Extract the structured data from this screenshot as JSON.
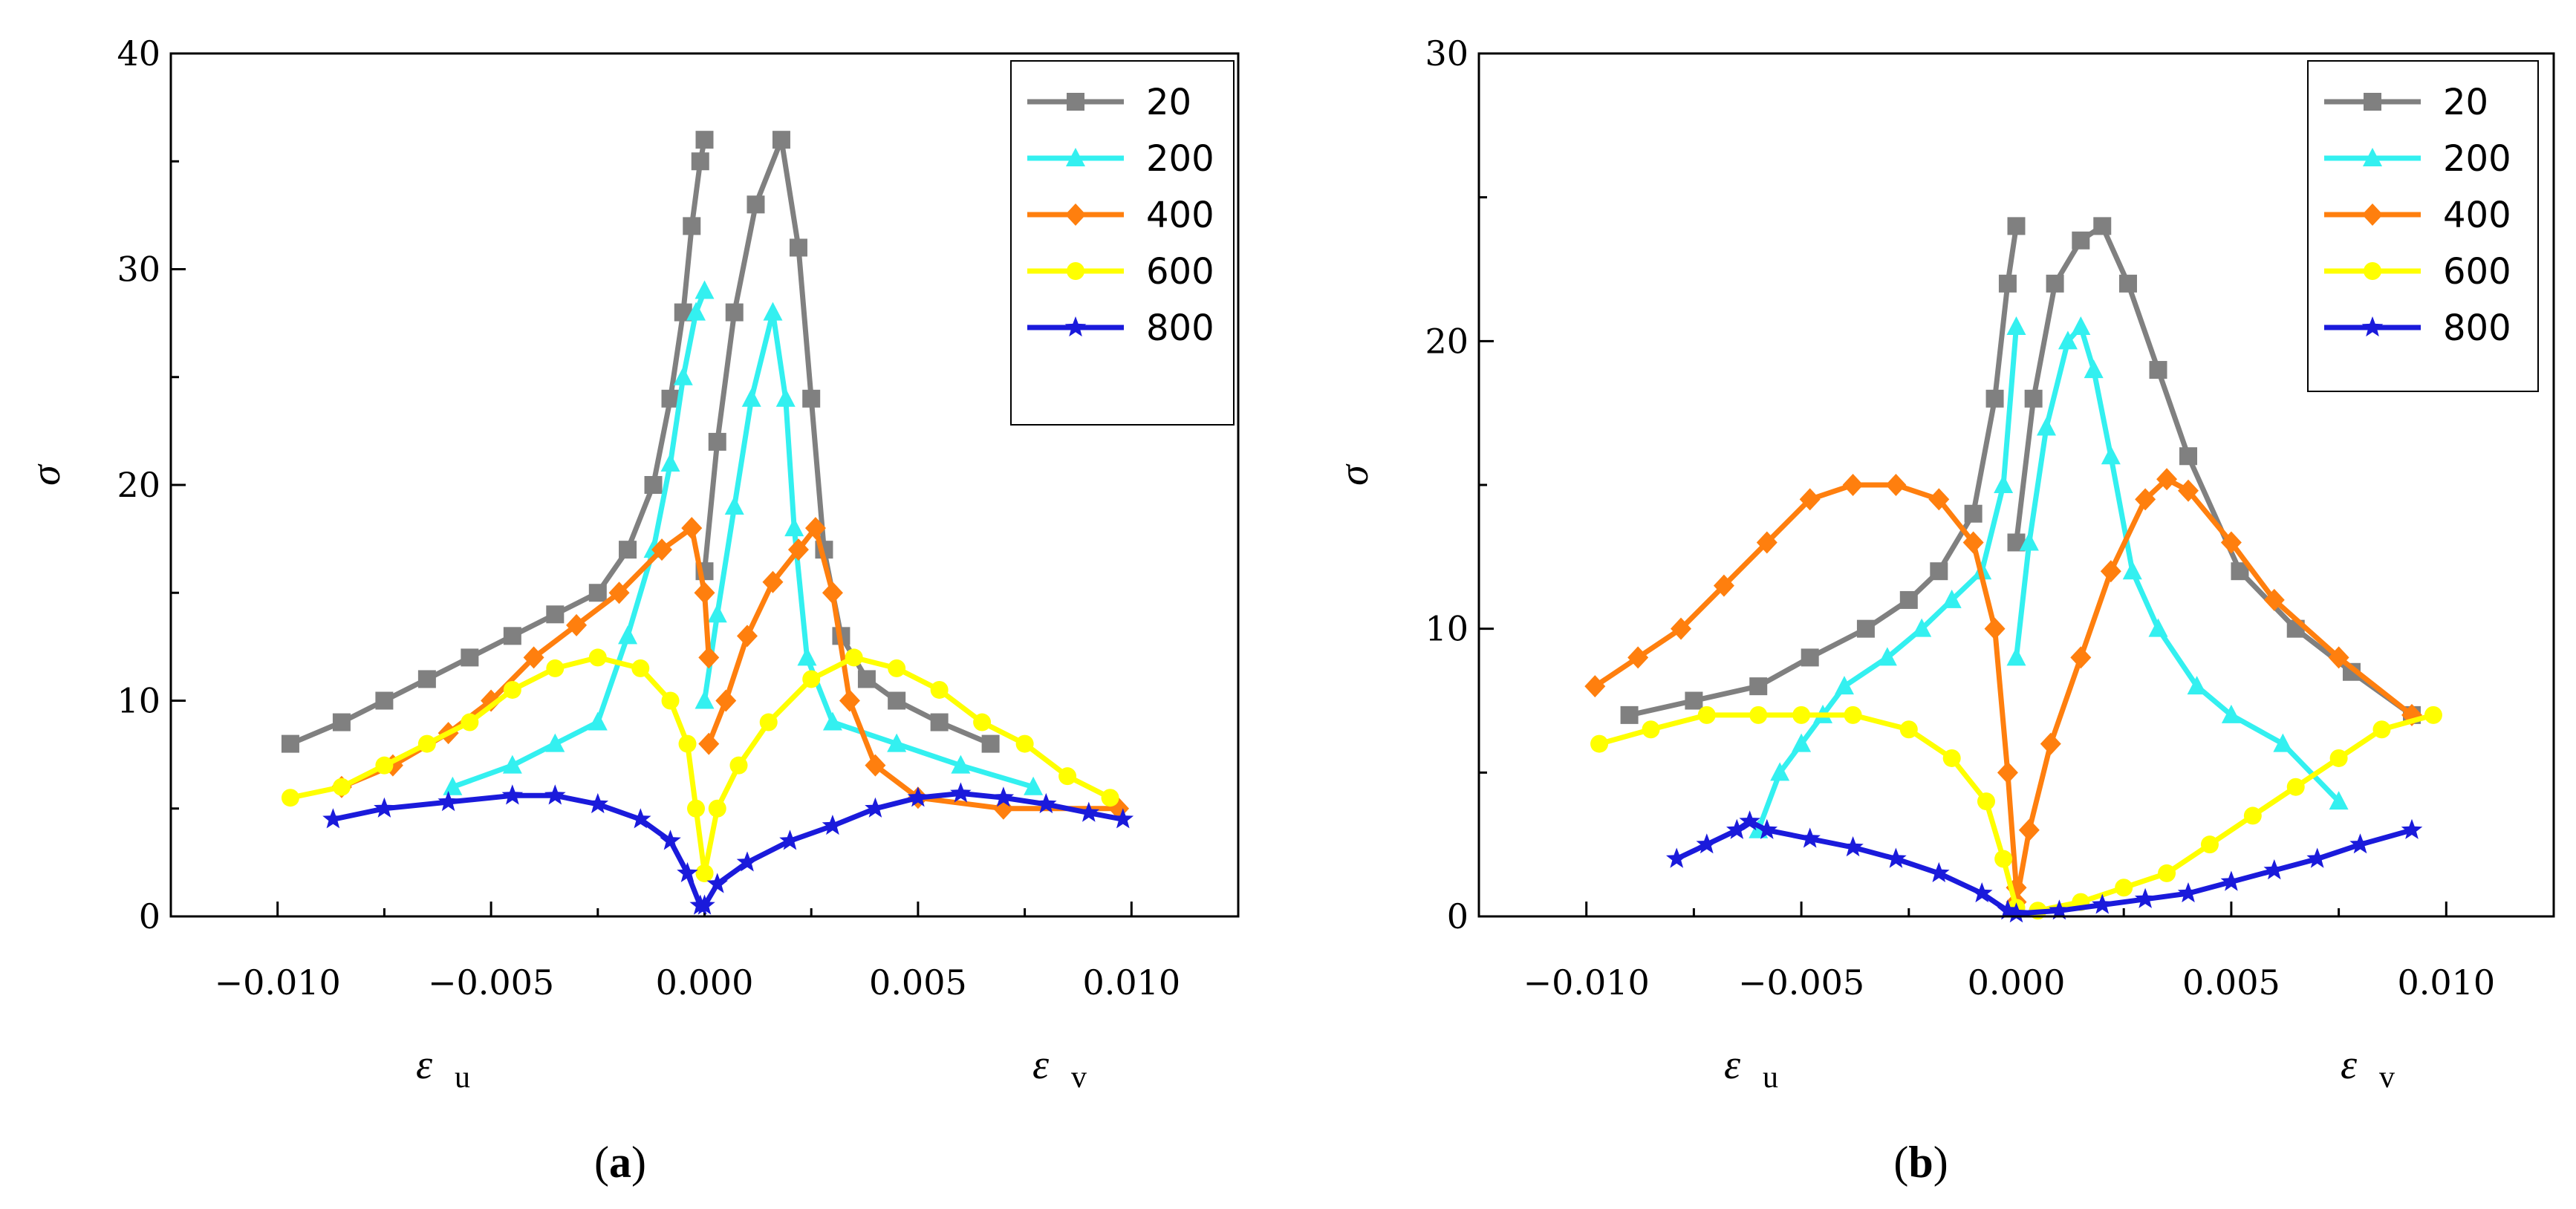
{
  "figure": {
    "caption_a": "a",
    "caption_b": "b",
    "paren_open": "(",
    "paren_close": ")"
  },
  "colors": {
    "20": "#808080",
    "200": "#33f0f0",
    "400": "#ff7f0e",
    "600": "#ffff00",
    "800": "#1a1adb"
  },
  "chart_data": [
    {
      "type": "line",
      "id": "a",
      "caption": "a",
      "ylabel": "σ",
      "xlabel_left": "ε",
      "xlabel_left_sub": "u",
      "xlabel_right": "ε",
      "xlabel_right_sub": "v",
      "xlim": [
        -0.0125,
        0.0125
      ],
      "ylim": [
        0,
        40
      ],
      "xticks": [
        -0.01,
        -0.005,
        0.0,
        0.005,
        0.01
      ],
      "xtick_labels": [
        "−0.010",
        "−0.005",
        "0.000",
        "0.005",
        "0.010"
      ],
      "yticks": [
        0,
        10,
        20,
        30,
        40
      ],
      "ytick_labels": [
        "0",
        "10",
        "20",
        "30",
        "40"
      ],
      "legend": [
        "20",
        "200",
        "400",
        "600",
        "800"
      ],
      "series": [
        {
          "name": "20",
          "marker": "square",
          "left": [
            [
              -0.0097,
              8
            ],
            [
              -0.0085,
              9
            ],
            [
              -0.0075,
              10
            ],
            [
              -0.0065,
              11
            ],
            [
              -0.0055,
              12
            ],
            [
              -0.0045,
              13
            ],
            [
              -0.0035,
              14
            ],
            [
              -0.0025,
              15
            ],
            [
              -0.0018,
              17
            ],
            [
              -0.0012,
              20
            ],
            [
              -0.0008,
              24
            ],
            [
              -0.0005,
              28
            ],
            [
              -0.0003,
              32
            ],
            [
              -0.0001,
              35
            ],
            [
              0,
              36
            ]
          ],
          "right": [
            [
              0,
              16
            ],
            [
              0.0003,
              22
            ],
            [
              0.0007,
              28
            ],
            [
              0.0012,
              33
            ],
            [
              0.0018,
              36
            ],
            [
              0.0022,
              31
            ],
            [
              0.0025,
              24
            ],
            [
              0.0028,
              17
            ],
            [
              0.0032,
              13
            ],
            [
              0.0038,
              11
            ],
            [
              0.0045,
              10
            ],
            [
              0.0055,
              9
            ],
            [
              0.0067,
              8
            ]
          ]
        },
        {
          "name": "200",
          "marker": "triangle",
          "left": [
            [
              -0.0059,
              6
            ],
            [
              -0.0045,
              7
            ],
            [
              -0.0035,
              8
            ],
            [
              -0.0025,
              9
            ],
            [
              -0.0018,
              13
            ],
            [
              -0.0012,
              17
            ],
            [
              -0.0008,
              21
            ],
            [
              -0.0005,
              25
            ],
            [
              -0.0002,
              28
            ],
            [
              0,
              29
            ]
          ],
          "right": [
            [
              0,
              10
            ],
            [
              0.0003,
              14
            ],
            [
              0.0007,
              19
            ],
            [
              0.0011,
              24
            ],
            [
              0.0016,
              28
            ],
            [
              0.0019,
              24
            ],
            [
              0.0021,
              18
            ],
            [
              0.0024,
              12
            ],
            [
              0.003,
              9
            ],
            [
              0.0045,
              8
            ],
            [
              0.006,
              7
            ],
            [
              0.0077,
              6
            ]
          ]
        },
        {
          "name": "400",
          "marker": "diamond",
          "left": [
            [
              -0.0085,
              6
            ],
            [
              -0.0073,
              7
            ],
            [
              -0.006,
              8.5
            ],
            [
              -0.005,
              10
            ],
            [
              -0.004,
              12
            ],
            [
              -0.003,
              13.5
            ],
            [
              -0.002,
              15
            ],
            [
              -0.001,
              17
            ],
            [
              -0.0003,
              18
            ],
            [
              0,
              15
            ],
            [
              0.0001,
              12
            ]
          ],
          "right": [
            [
              0.0001,
              8
            ],
            [
              0.0005,
              10
            ],
            [
              0.001,
              13
            ],
            [
              0.0016,
              15.5
            ],
            [
              0.0022,
              17
            ],
            [
              0.0026,
              18
            ],
            [
              0.003,
              15
            ],
            [
              0.0034,
              10
            ],
            [
              0.004,
              7
            ],
            [
              0.005,
              5.5
            ],
            [
              0.007,
              5
            ],
            [
              0.0097,
              5
            ]
          ]
        },
        {
          "name": "600",
          "marker": "circle",
          "left": [
            [
              -0.0097,
              5.5
            ],
            [
              -0.0085,
              6
            ],
            [
              -0.0075,
              7
            ],
            [
              -0.0065,
              8
            ],
            [
              -0.0055,
              9
            ],
            [
              -0.0045,
              10.5
            ],
            [
              -0.0035,
              11.5
            ],
            [
              -0.0025,
              12
            ],
            [
              -0.0015,
              11.5
            ],
            [
              -0.0008,
              10
            ],
            [
              -0.0004,
              8
            ],
            [
              -0.0002,
              5
            ],
            [
              0,
              2
            ]
          ],
          "right": [
            [
              0,
              2
            ],
            [
              0.0003,
              5
            ],
            [
              0.0008,
              7
            ],
            [
              0.0015,
              9
            ],
            [
              0.0025,
              11
            ],
            [
              0.0035,
              12
            ],
            [
              0.0045,
              11.5
            ],
            [
              0.0055,
              10.5
            ],
            [
              0.0065,
              9
            ],
            [
              0.0075,
              8
            ],
            [
              0.0085,
              6.5
            ],
            [
              0.0095,
              5.5
            ]
          ]
        },
        {
          "name": "800",
          "marker": "star",
          "left": [
            [
              -0.0087,
              4.5
            ],
            [
              -0.0075,
              5
            ],
            [
              -0.006,
              5.3
            ],
            [
              -0.0045,
              5.6
            ],
            [
              -0.0035,
              5.6
            ],
            [
              -0.0025,
              5.2
            ],
            [
              -0.0015,
              4.5
            ],
            [
              -0.0008,
              3.5
            ],
            [
              -0.0004,
              2
            ],
            [
              -0.0001,
              0.5
            ]
          ],
          "right": [
            [
              0,
              0.5
            ],
            [
              0.0003,
              1.5
            ],
            [
              0.001,
              2.5
            ],
            [
              0.002,
              3.5
            ],
            [
              0.003,
              4.2
            ],
            [
              0.004,
              5
            ],
            [
              0.005,
              5.5
            ],
            [
              0.006,
              5.7
            ],
            [
              0.007,
              5.5
            ],
            [
              0.008,
              5.2
            ],
            [
              0.009,
              4.8
            ],
            [
              0.0098,
              4.5
            ]
          ]
        }
      ]
    },
    {
      "type": "line",
      "id": "b",
      "caption": "b",
      "ylabel": "σ",
      "xlabel_left": "ε",
      "xlabel_left_sub": "u",
      "xlabel_right": "ε",
      "xlabel_right_sub": "v",
      "xlim": [
        -0.0125,
        0.0125
      ],
      "ylim": [
        0,
        30
      ],
      "xticks": [
        -0.01,
        -0.005,
        0.0,
        0.005,
        0.01
      ],
      "xtick_labels": [
        "−0.010",
        "−0.005",
        "0.000",
        "0.005",
        "0.010"
      ],
      "yticks": [
        0,
        10,
        20,
        30
      ],
      "ytick_labels": [
        "0",
        "10",
        "20",
        "30"
      ],
      "legend": [
        "20",
        "200",
        "400",
        "600",
        "800"
      ],
      "series": [
        {
          "name": "20",
          "marker": "square",
          "left": [
            [
              -0.009,
              7
            ],
            [
              -0.0075,
              7.5
            ],
            [
              -0.006,
              8
            ],
            [
              -0.0048,
              9
            ],
            [
              -0.0035,
              10
            ],
            [
              -0.0025,
              11
            ],
            [
              -0.0018,
              12
            ],
            [
              -0.001,
              14
            ],
            [
              -0.0005,
              18
            ],
            [
              -0.0002,
              22
            ],
            [
              0,
              24
            ]
          ],
          "right": [
            [
              0,
              13
            ],
            [
              0.0004,
              18
            ],
            [
              0.0009,
              22
            ],
            [
              0.0015,
              23.5
            ],
            [
              0.002,
              24
            ],
            [
              0.0026,
              22
            ],
            [
              0.0033,
              19
            ],
            [
              0.004,
              16
            ],
            [
              0.0052,
              12
            ],
            [
              0.0065,
              10
            ],
            [
              0.0078,
              8.5
            ],
            [
              0.0092,
              7
            ]
          ]
        },
        {
          "name": "200",
          "marker": "triangle",
          "left": [
            [
              -0.006,
              3
            ],
            [
              -0.0055,
              5
            ],
            [
              -0.005,
              6
            ],
            [
              -0.0045,
              7
            ],
            [
              -0.004,
              8
            ],
            [
              -0.003,
              9
            ],
            [
              -0.0022,
              10
            ],
            [
              -0.0015,
              11
            ],
            [
              -0.0008,
              12
            ],
            [
              -0.0003,
              15
            ],
            [
              0,
              20.5
            ]
          ],
          "right": [
            [
              0,
              9
            ],
            [
              0.0003,
              13
            ],
            [
              0.0007,
              17
            ],
            [
              0.0012,
              20
            ],
            [
              0.0015,
              20.5
            ],
            [
              0.0018,
              19
            ],
            [
              0.0022,
              16
            ],
            [
              0.0027,
              12
            ],
            [
              0.0033,
              10
            ],
            [
              0.0042,
              8
            ],
            [
              0.005,
              7
            ],
            [
              0.0062,
              6
            ],
            [
              0.0075,
              4
            ]
          ]
        },
        {
          "name": "400",
          "marker": "diamond",
          "left": [
            [
              -0.0098,
              8
            ],
            [
              -0.0088,
              9
            ],
            [
              -0.0078,
              10
            ],
            [
              -0.0068,
              11.5
            ],
            [
              -0.0058,
              13
            ],
            [
              -0.0048,
              14.5
            ],
            [
              -0.0038,
              15
            ],
            [
              -0.0028,
              15
            ],
            [
              -0.0018,
              14.5
            ],
            [
              -0.001,
              13
            ],
            [
              -0.0005,
              10
            ],
            [
              -0.0002,
              5
            ],
            [
              0,
              1
            ]
          ],
          "right": [
            [
              0,
              0.5
            ],
            [
              0.0003,
              3
            ],
            [
              0.0008,
              6
            ],
            [
              0.0015,
              9
            ],
            [
              0.0022,
              12
            ],
            [
              0.003,
              14.5
            ],
            [
              0.0035,
              15.2
            ],
            [
              0.004,
              14.8
            ],
            [
              0.005,
              13
            ],
            [
              0.006,
              11
            ],
            [
              0.0075,
              9
            ],
            [
              0.0092,
              7
            ]
          ]
        },
        {
          "name": "600",
          "marker": "circle",
          "left": [
            [
              -0.0097,
              6
            ],
            [
              -0.0085,
              6.5
            ],
            [
              -0.0072,
              7
            ],
            [
              -0.006,
              7
            ],
            [
              -0.005,
              7
            ],
            [
              -0.0038,
              7
            ],
            [
              -0.0025,
              6.5
            ],
            [
              -0.0015,
              5.5
            ],
            [
              -0.0007,
              4
            ],
            [
              -0.0003,
              2
            ],
            [
              0,
              0.3
            ]
          ],
          "right": [
            [
              0.0005,
              0.2
            ],
            [
              0.0015,
              0.5
            ],
            [
              0.0025,
              1
            ],
            [
              0.0035,
              1.5
            ],
            [
              0.0045,
              2.5
            ],
            [
              0.0055,
              3.5
            ],
            [
              0.0065,
              4.5
            ],
            [
              0.0075,
              5.5
            ],
            [
              0.0085,
              6.5
            ],
            [
              0.0097,
              7
            ]
          ]
        },
        {
          "name": "800",
          "marker": "star",
          "left": [
            [
              -0.0079,
              2
            ],
            [
              -0.0072,
              2.5
            ],
            [
              -0.0065,
              3
            ],
            [
              -0.0062,
              3.3
            ],
            [
              -0.0058,
              3
            ],
            [
              -0.0048,
              2.7
            ],
            [
              -0.0038,
              2.4
            ],
            [
              -0.0028,
              2
            ],
            [
              -0.0018,
              1.5
            ],
            [
              -0.0008,
              0.8
            ],
            [
              -0.0002,
              0.2
            ]
          ],
          "right": [
            [
              0,
              0.1
            ],
            [
              0.001,
              0.2
            ],
            [
              0.002,
              0.4
            ],
            [
              0.003,
              0.6
            ],
            [
              0.004,
              0.8
            ],
            [
              0.005,
              1.2
            ],
            [
              0.006,
              1.6
            ],
            [
              0.007,
              2
            ],
            [
              0.008,
              2.5
            ],
            [
              0.0092,
              3
            ]
          ]
        }
      ]
    }
  ]
}
